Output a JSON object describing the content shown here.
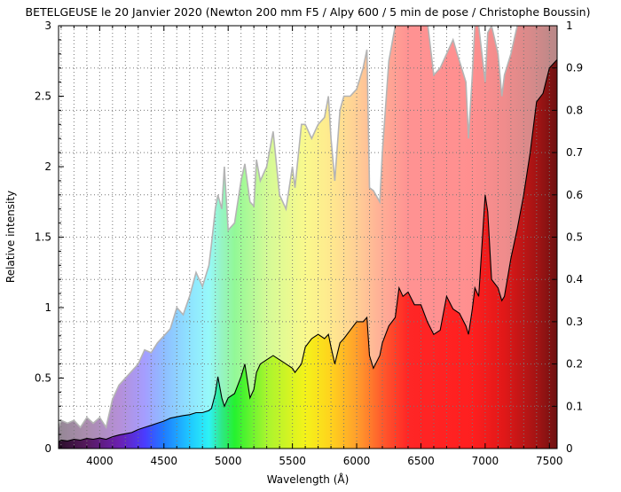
{
  "chart_data": {
    "type": "line",
    "title": "BETELGEUSE le 20 Janvier 2020 (Newton 200 mm F5 / Alpy 600 / 5 min de pose / Christophe Boussin)",
    "xlabel": "Wavelength (Å)",
    "ylabel": "Relative intensity",
    "xlim": [
      3680,
      7560
    ],
    "ylim": [
      0,
      3
    ],
    "y2lim": [
      0,
      1
    ],
    "grid": true,
    "x_ticks": [
      "4000",
      "4500",
      "5000",
      "5500",
      "6000",
      "6500",
      "7000",
      "7500"
    ],
    "y_ticks": [
      "0",
      "0.5",
      "1",
      "1.5",
      "2",
      "2.5",
      "3"
    ],
    "y2_ticks": [
      "0",
      "0.1",
      "0.2",
      "0.3",
      "0.4",
      "0.5",
      "0.6",
      "0.7",
      "0.8",
      "0.9",
      "1"
    ],
    "colors": {
      "line": "#000000",
      "filled_outline": "#b4b4b4",
      "frame": "#000000",
      "grid": "#777777"
    },
    "series": [
      {
        "style": "filled-area",
        "x": [
          3680,
          3700,
          3750,
          3800,
          3850,
          3900,
          3950,
          4000,
          4050,
          4100,
          4150,
          4200,
          4250,
          4300,
          4350,
          4400,
          4450,
          4500,
          4550,
          4600,
          4650,
          4700,
          4750,
          4800,
          4850,
          4870,
          4900,
          4920,
          4950,
          4970,
          5000,
          5050,
          5100,
          5130,
          5170,
          5200,
          5220,
          5250,
          5300,
          5350,
          5400,
          5450,
          5500,
          5520,
          5570,
          5600,
          5650,
          5700,
          5750,
          5780,
          5800,
          5830,
          5870,
          5900,
          5950,
          6000,
          6050,
          6080,
          6100,
          6130,
          6180,
          6200,
          6250,
          6300,
          6330,
          6360,
          6400,
          6450,
          6500,
          6550,
          6600,
          6650,
          6700,
          6750,
          6800,
          6850,
          6870,
          6900,
          6920,
          6950,
          7000,
          7020,
          7050,
          7100,
          7130,
          7150,
          7200,
          7250,
          7300,
          7350,
          7400,
          7450,
          7500,
          7560
        ],
        "y": [
          0.15,
          0.2,
          0.18,
          0.2,
          0.15,
          0.22,
          0.18,
          0.22,
          0.15,
          0.35,
          0.45,
          0.5,
          0.55,
          0.6,
          0.7,
          0.68,
          0.75,
          0.8,
          0.85,
          1.0,
          0.95,
          1.08,
          1.25,
          1.15,
          1.3,
          1.45,
          1.7,
          1.8,
          1.7,
          2.0,
          1.55,
          1.6,
          1.9,
          2.02,
          1.75,
          1.72,
          2.05,
          1.9,
          2.0,
          2.25,
          1.8,
          1.7,
          2.0,
          1.85,
          2.3,
          2.3,
          2.2,
          2.3,
          2.35,
          2.5,
          2.2,
          1.9,
          2.4,
          2.5,
          2.5,
          2.55,
          2.7,
          2.83,
          1.85,
          1.83,
          1.75,
          2.1,
          2.75,
          3.0,
          3.1,
          3.08,
          3.1,
          3.08,
          3.1,
          3.05,
          2.65,
          2.7,
          2.8,
          2.9,
          2.75,
          2.6,
          2.2,
          2.65,
          3.0,
          3.0,
          2.6,
          2.95,
          3.0,
          2.8,
          2.5,
          2.65,
          2.8,
          3.0,
          3.05,
          3.1,
          3.05,
          3.0,
          3.05,
          3.0
        ]
      },
      {
        "style": "line",
        "axis": "right",
        "x": [
          3680,
          3700,
          3750,
          3800,
          3850,
          3900,
          3950,
          4000,
          4050,
          4100,
          4150,
          4200,
          4250,
          4300,
          4350,
          4400,
          4450,
          4500,
          4550,
          4600,
          4650,
          4700,
          4750,
          4800,
          4850,
          4870,
          4900,
          4920,
          4950,
          4970,
          5000,
          5050,
          5100,
          5130,
          5170,
          5200,
          5220,
          5250,
          5300,
          5350,
          5400,
          5450,
          5500,
          5520,
          5570,
          5600,
          5650,
          5700,
          5750,
          5780,
          5800,
          5830,
          5870,
          5900,
          5950,
          6000,
          6050,
          6080,
          6100,
          6130,
          6180,
          6200,
          6250,
          6300,
          6330,
          6360,
          6400,
          6450,
          6500,
          6550,
          6600,
          6650,
          6700,
          6750,
          6800,
          6850,
          6870,
          6900,
          6920,
          6950,
          7000,
          7020,
          7050,
          7100,
          7130,
          7150,
          7200,
          7250,
          7300,
          7350,
          7400,
          7450,
          7500,
          7560
        ],
        "y": [
          0.015,
          0.02,
          0.018,
          0.022,
          0.02,
          0.024,
          0.022,
          0.025,
          0.022,
          0.028,
          0.032,
          0.035,
          0.038,
          0.045,
          0.05,
          0.055,
          0.06,
          0.065,
          0.072,
          0.075,
          0.078,
          0.08,
          0.085,
          0.085,
          0.09,
          0.095,
          0.13,
          0.17,
          0.12,
          0.1,
          0.12,
          0.13,
          0.17,
          0.2,
          0.12,
          0.14,
          0.18,
          0.2,
          0.21,
          0.22,
          0.21,
          0.2,
          0.19,
          0.18,
          0.2,
          0.24,
          0.26,
          0.27,
          0.26,
          0.27,
          0.24,
          0.2,
          0.25,
          0.26,
          0.28,
          0.3,
          0.3,
          0.31,
          0.22,
          0.19,
          0.22,
          0.25,
          0.29,
          0.31,
          0.38,
          0.36,
          0.37,
          0.34,
          0.34,
          0.3,
          0.27,
          0.28,
          0.36,
          0.33,
          0.32,
          0.29,
          0.27,
          0.33,
          0.38,
          0.36,
          0.6,
          0.56,
          0.4,
          0.38,
          0.35,
          0.36,
          0.45,
          0.52,
          0.6,
          0.7,
          0.82,
          0.84,
          0.9,
          0.92
        ]
      }
    ]
  }
}
